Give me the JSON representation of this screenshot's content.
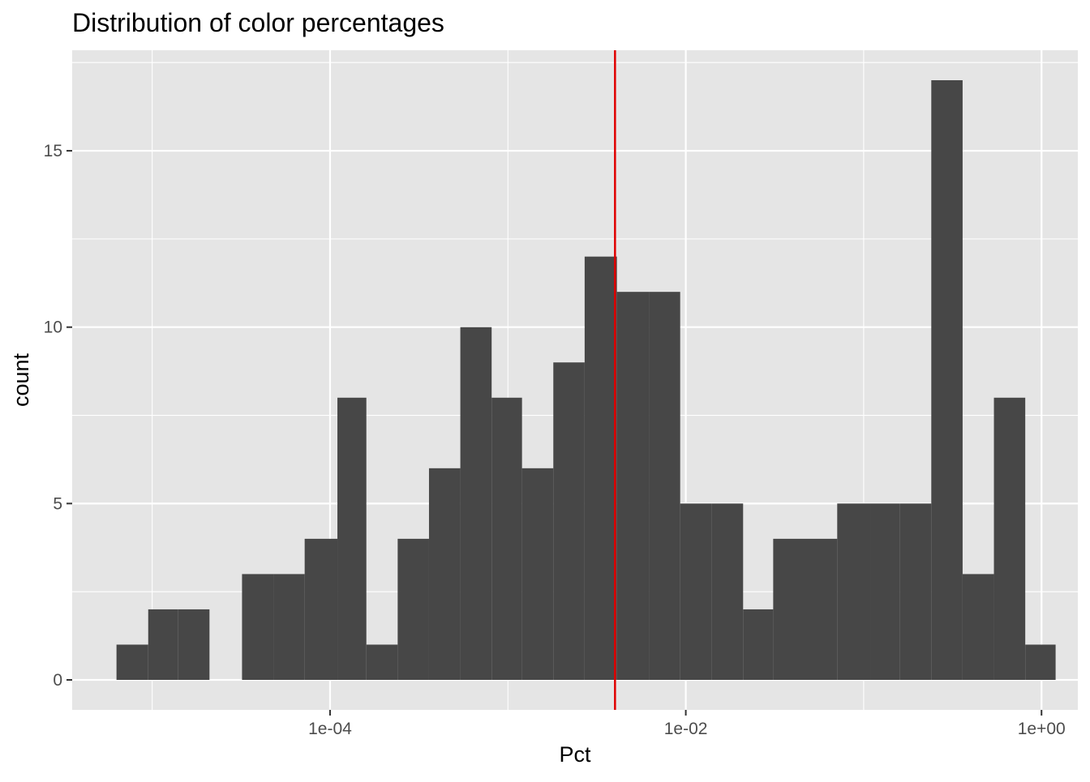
{
  "chart_data": {
    "type": "bar",
    "title": "Distribution of color percentages",
    "xlabel": "Pct",
    "ylabel": "count",
    "x_scale": "log10",
    "xlim": [
      3.55e-06,
      1.6
    ],
    "ylim": [
      -0.85,
      17.85
    ],
    "x_ticks": [
      {
        "value": 0.0001,
        "label": "1e-04"
      },
      {
        "value": 0.01,
        "label": "1e-02"
      },
      {
        "value": 1,
        "label": "1e+00"
      }
    ],
    "y_ticks": [
      {
        "value": 0,
        "label": "0"
      },
      {
        "value": 5,
        "label": "5"
      },
      {
        "value": 10,
        "label": "10"
      },
      {
        "value": 15,
        "label": "15"
      }
    ],
    "grid": true,
    "bins": [
      {
        "x0": 6.3e-06,
        "x1": 9.5e-06,
        "count": 1
      },
      {
        "x0": 9.5e-06,
        "x1": 1.4e-05,
        "count": 2
      },
      {
        "x0": 1.4e-05,
        "x1": 2.1e-05,
        "count": 2
      },
      {
        "x0": 2.1e-05,
        "x1": 3.2e-05,
        "count": 0
      },
      {
        "x0": 3.2e-05,
        "x1": 4.8e-05,
        "count": 3
      },
      {
        "x0": 4.8e-05,
        "x1": 7.2e-05,
        "count": 3
      },
      {
        "x0": 7.2e-05,
        "x1": 0.00011,
        "count": 4
      },
      {
        "x0": 0.00011,
        "x1": 0.00016,
        "count": 8
      },
      {
        "x0": 0.00016,
        "x1": 0.00024,
        "count": 1
      },
      {
        "x0": 0.00024,
        "x1": 0.00036,
        "count": 4
      },
      {
        "x0": 0.00036,
        "x1": 0.00054,
        "count": 6
      },
      {
        "x0": 0.00054,
        "x1": 0.00081,
        "count": 10
      },
      {
        "x0": 0.00081,
        "x1": 0.0012,
        "count": 8
      },
      {
        "x0": 0.0012,
        "x1": 0.0018,
        "count": 6
      },
      {
        "x0": 0.0018,
        "x1": 0.0027,
        "count": 9
      },
      {
        "x0": 0.0027,
        "x1": 0.0041,
        "count": 12
      },
      {
        "x0": 0.0041,
        "x1": 0.0062,
        "count": 11
      },
      {
        "x0": 0.0062,
        "x1": 0.0093,
        "count": 11
      },
      {
        "x0": 0.0093,
        "x1": 0.014,
        "count": 5
      },
      {
        "x0": 0.014,
        "x1": 0.021,
        "count": 5
      },
      {
        "x0": 0.021,
        "x1": 0.031,
        "count": 2
      },
      {
        "x0": 0.031,
        "x1": 0.047,
        "count": 4
      },
      {
        "x0": 0.047,
        "x1": 0.071,
        "count": 4
      },
      {
        "x0": 0.071,
        "x1": 0.11,
        "count": 5
      },
      {
        "x0": 0.11,
        "x1": 0.16,
        "count": 5
      },
      {
        "x0": 0.16,
        "x1": 0.24,
        "count": 5
      },
      {
        "x0": 0.24,
        "x1": 0.36,
        "count": 17
      },
      {
        "x0": 0.36,
        "x1": 0.54,
        "count": 3
      },
      {
        "x0": 0.54,
        "x1": 0.81,
        "count": 8
      },
      {
        "x0": 0.81,
        "x1": 1.2,
        "count": 1
      }
    ],
    "reference_line": {
      "x": 0.004,
      "color": "#e00000"
    },
    "colors": {
      "panel_background": "#e5e5e5",
      "grid": "#ffffff",
      "bar_fill": "#474747",
      "text": "#000000",
      "tick_text": "#4d4d4d",
      "tick_mark": "#333333"
    }
  }
}
